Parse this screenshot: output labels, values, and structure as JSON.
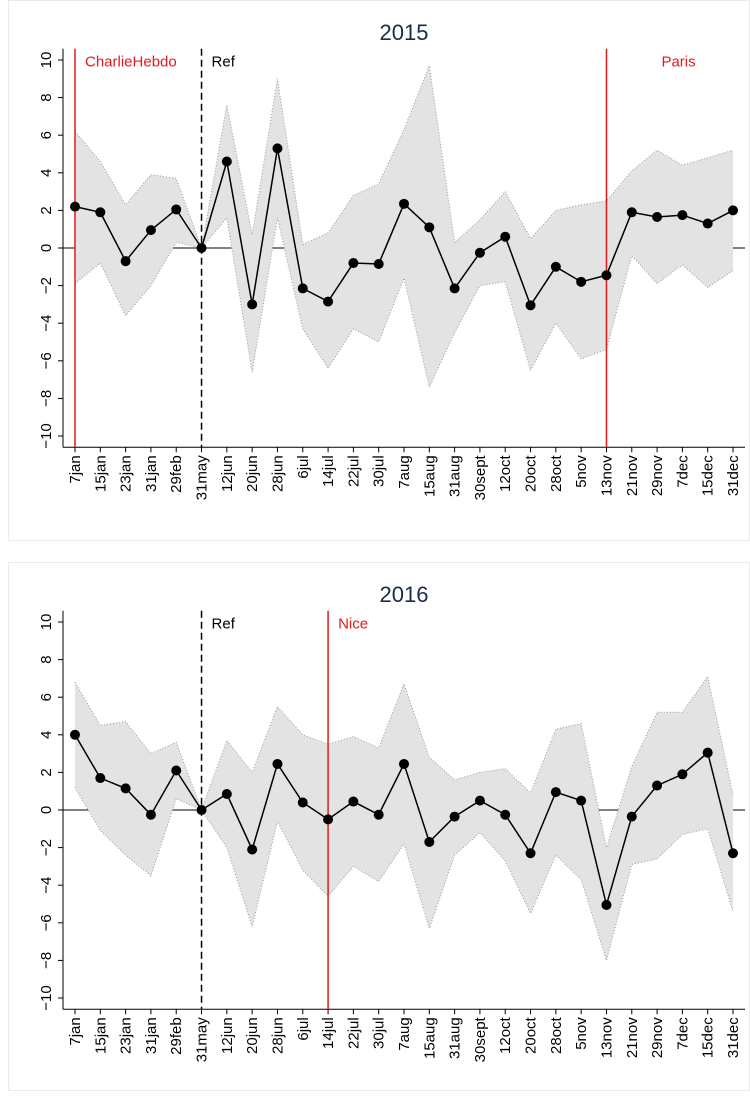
{
  "chart_data": [
    {
      "type": "line",
      "title": "2015",
      "categories": [
        "7jan",
        "15jan",
        "23jan",
        "31jan",
        "29feb",
        "31may",
        "12jun",
        "20jun",
        "28jun",
        "6jul",
        "14jul",
        "22jul",
        "30jul",
        "7aug",
        "15aug",
        "31aug",
        "30sept",
        "12oct",
        "20oct",
        "28oct",
        "5nov",
        "13nov",
        "21nov",
        "29nov",
        "7dec",
        "15dec",
        "31dec"
      ],
      "values": [
        2.2,
        1.9,
        -0.7,
        0.95,
        2.05,
        0,
        4.6,
        -3.0,
        5.3,
        -2.15,
        -2.85,
        -0.8,
        -0.85,
        2.35,
        1.1,
        -2.15,
        -0.25,
        0.6,
        -3.05,
        -1.0,
        -1.8,
        -1.45,
        1.9,
        1.65,
        1.75,
        1.3,
        2.0
      ],
      "ci_upper": [
        6.2,
        4.6,
        2.3,
        3.9,
        3.7,
        0,
        7.6,
        0.7,
        9.0,
        0.2,
        0.8,
        2.8,
        3.4,
        6.3,
        9.7,
        0.3,
        1.5,
        3.0,
        0.5,
        2.0,
        2.3,
        2.5,
        4.1,
        5.2,
        4.4,
        4.8,
        5.2
      ],
      "ci_lower": [
        -1.9,
        -0.8,
        -3.6,
        -2.0,
        0.3,
        0,
        1.6,
        -6.6,
        1.6,
        -4.3,
        -6.4,
        -4.3,
        -5.0,
        -1.6,
        -7.4,
        -4.5,
        -2.0,
        -1.8,
        -6.5,
        -4.0,
        -5.9,
        -5.4,
        -0.4,
        -1.9,
        -0.9,
        -2.1,
        -1.2
      ],
      "color": "#000000",
      "band_color": "#e3e3e3",
      "ylim": [
        -10.6,
        10.6
      ],
      "yticks": [
        {
          "value": -10,
          "label": "−10"
        },
        {
          "value": -8,
          "label": "−8"
        },
        {
          "value": -6,
          "label": "−6"
        },
        {
          "value": -4,
          "label": "−4"
        },
        {
          "value": -2,
          "label": "−2"
        },
        0,
        2,
        4,
        6,
        8,
        10
      ],
      "zero_line": true,
      "events": [
        {
          "at": "7jan",
          "label": "CharlieHebdo",
          "color": "#e41a1c",
          "style": "solid",
          "label_side": "right"
        },
        {
          "at": "31may",
          "label": "Ref",
          "color": "#000000",
          "style": "dashed",
          "label_side": "right"
        },
        {
          "at": "13nov",
          "label": "Paris",
          "color": "#e41a1c",
          "style": "solid",
          "label_side": "far"
        }
      ]
    },
    {
      "type": "line",
      "title": "2016",
      "categories": [
        "7jan",
        "15jan",
        "23jan",
        "31jan",
        "29feb",
        "31may",
        "12jun",
        "20jun",
        "28jun",
        "6jul",
        "14jul",
        "22jul",
        "30jul",
        "7aug",
        "15aug",
        "31aug",
        "30sept",
        "12oct",
        "20oct",
        "28oct",
        "5nov",
        "13nov",
        "21nov",
        "29nov",
        "7dec",
        "15dec",
        "31dec"
      ],
      "values": [
        4.0,
        1.7,
        1.15,
        -0.25,
        2.1,
        0,
        0.85,
        -2.1,
        2.45,
        0.4,
        -0.5,
        0.45,
        -0.25,
        2.45,
        -1.7,
        -0.35,
        0.5,
        -0.25,
        -2.3,
        0.95,
        0.5,
        -5.05,
        -0.35,
        1.3,
        1.9,
        3.05,
        -2.3
      ],
      "ci_upper": [
        6.8,
        4.5,
        4.7,
        3.0,
        3.6,
        0,
        3.7,
        2.0,
        5.5,
        4.0,
        3.5,
        3.9,
        3.3,
        6.7,
        2.8,
        1.6,
        2.0,
        2.2,
        0.9,
        4.3,
        4.6,
        -2.0,
        2.3,
        5.2,
        5.2,
        7.1,
        0.8
      ],
      "ci_lower": [
        1.2,
        -1.1,
        -2.4,
        -3.5,
        0.6,
        0,
        -2.0,
        -6.2,
        -0.6,
        -3.2,
        -4.6,
        -3.0,
        -3.8,
        -1.8,
        -6.3,
        -2.4,
        -1.2,
        -2.7,
        -5.5,
        -2.4,
        -3.7,
        -8.0,
        -2.9,
        -2.6,
        -1.3,
        -1.0,
        -5.4
      ],
      "color": "#000000",
      "band_color": "#e3e3e3",
      "ylim": [
        -10.6,
        10.6
      ],
      "yticks": [
        {
          "value": -10,
          "label": "−10"
        },
        {
          "value": -8,
          "label": "−8"
        },
        {
          "value": -6,
          "label": "−6"
        },
        {
          "value": -4,
          "label": "−4"
        },
        {
          "value": -2,
          "label": "−2"
        },
        0,
        2,
        4,
        6,
        8,
        10
      ],
      "zero_line": true,
      "events": [
        {
          "at": "31may",
          "label": "Ref",
          "color": "#000000",
          "style": "dashed",
          "label_side": "right"
        },
        {
          "at": "14jul",
          "label": "Nice",
          "color": "#e41a1c",
          "style": "solid",
          "label_side": "right"
        }
      ]
    }
  ]
}
